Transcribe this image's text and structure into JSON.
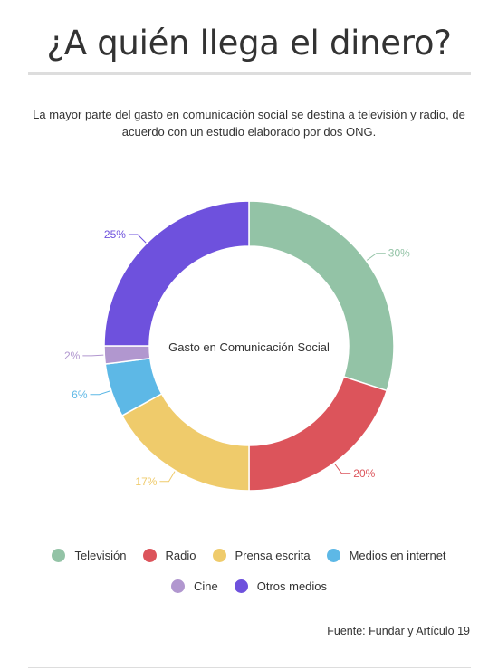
{
  "header": {
    "title": "¿A quién llega el dinero?",
    "subtitle": "La mayor parte del gasto en comunicación social se destina a televisión y radio, de acuerdo con un estudio elaborado por dos ONG."
  },
  "footer": {
    "source": "Fuente: Fundar y Artículo 19"
  },
  "chart_data": {
    "type": "pie",
    "center_label": "Gasto en Comunicación Social",
    "categories": [
      "Televisión",
      "Radio",
      "Prensa escrita",
      "Medios en internet",
      "Cine",
      "Otros medios"
    ],
    "values": [
      30,
      20,
      17,
      6,
      2,
      25
    ],
    "labels": [
      "30%",
      "20%",
      "17%",
      "6%",
      "2%",
      "25%"
    ],
    "colors": [
      "#93c3a6",
      "#dc545b",
      "#efcb6b",
      "#5db8e6",
      "#b197cf",
      "#6e51dd"
    ],
    "legend_position": "bottom"
  }
}
